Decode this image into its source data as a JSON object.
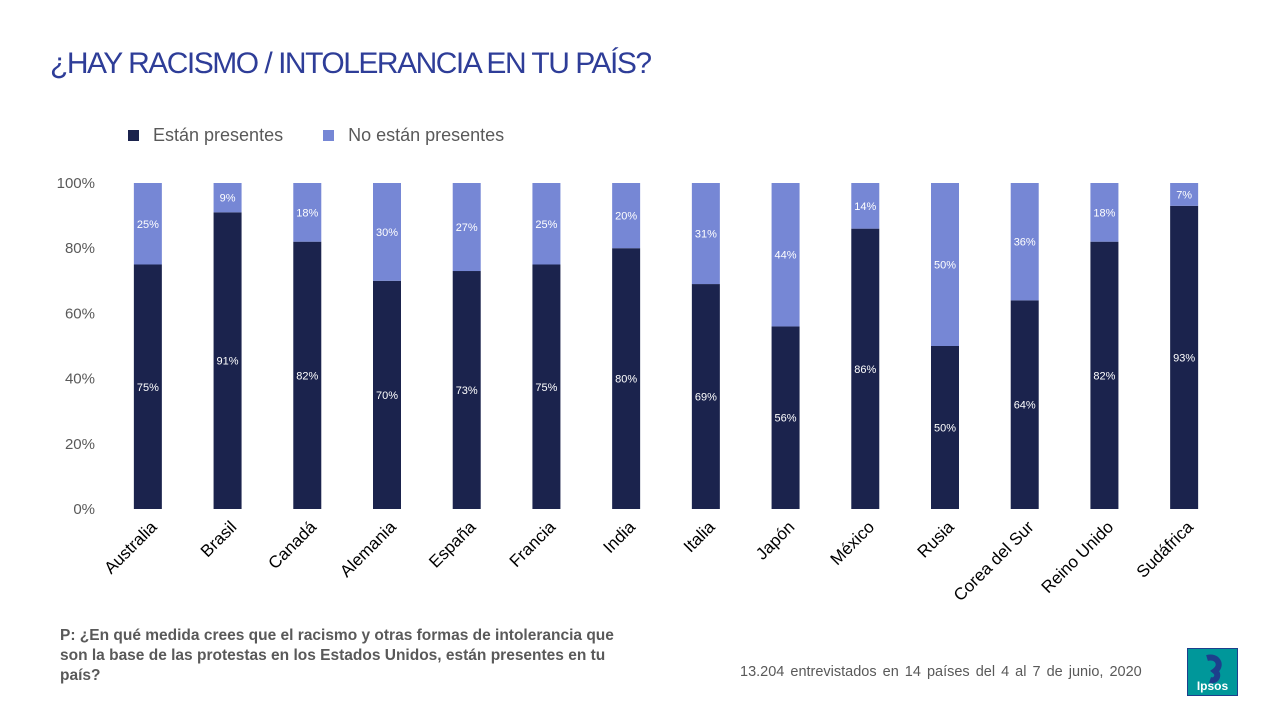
{
  "title": "¿HAY RACISMO / INTOLERANCIA EN TU PAÍS?",
  "legend": [
    {
      "label": "Están presentes",
      "color": "#1b234d"
    },
    {
      "label": "No están presentes",
      "color": "#7687d5"
    }
  ],
  "chart_data": {
    "type": "bar",
    "stacked": true,
    "title": "¿HAY RACISMO / INTOLERANCIA EN TU PAÍS?",
    "categories": [
      "Australia",
      "Brasil",
      "Canadá",
      "Alemania",
      "España",
      "Francia",
      "India",
      "Italia",
      "Japón",
      "México",
      "Rusia",
      "Corea del Sur",
      "Reino Unido",
      "Sudáfrica"
    ],
    "series": [
      {
        "name": "Están presentes",
        "color": "#1b234d",
        "values": [
          75,
          91,
          82,
          70,
          73,
          75,
          80,
          69,
          56,
          86,
          50,
          64,
          82,
          93
        ]
      },
      {
        "name": "No están presentes",
        "color": "#7687d5",
        "values": [
          25,
          9,
          18,
          30,
          27,
          25,
          20,
          31,
          44,
          14,
          50,
          36,
          18,
          7
        ]
      }
    ],
    "yticks": [
      "0%",
      "20%",
      "40%",
      "60%",
      "80%",
      "100%"
    ],
    "ylim": [
      0,
      100
    ],
    "xlabel": "",
    "ylabel": "",
    "legend_position": "top-left"
  },
  "question": "P: ¿En qué medida crees que el racismo y otras formas de intolerancia que son la base de las protestas en los Estados Unidos, están presentes en tu país?",
  "footnote": "13.204 entrevistados en 14 países del 4 al 7 de junio, 2020",
  "logo": {
    "text": "Ipsos",
    "bg_color": "#00979a"
  }
}
